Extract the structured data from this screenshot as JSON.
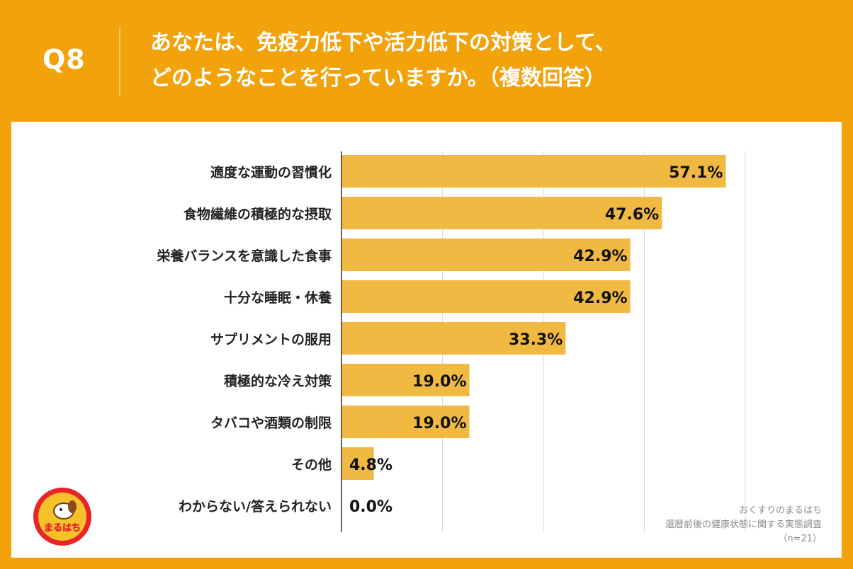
{
  "question": {
    "number": "Q8",
    "title_lines": [
      "あなたは、免疫力低下や活力低下の対策として、",
      "どのようなことを行っていますか。（複数回答）"
    ]
  },
  "chart_data": {
    "type": "bar",
    "orientation": "horizontal",
    "categories": [
      "適度な運動の習慣化",
      "食物繊維の積極的な摂取",
      "栄養バランスを意識した食事",
      "十分な睡眠・休養",
      "サプリメントの服用",
      "積極的な冷え対策",
      "タバコや酒類の制限",
      "その他",
      "わからない/答えられない"
    ],
    "values": [
      57.1,
      47.6,
      42.9,
      42.9,
      33.3,
      19.0,
      19.0,
      4.8,
      0.0
    ],
    "value_labels": [
      "57.1%",
      "47.6%",
      "42.9%",
      "42.9%",
      "33.3%",
      "19.0%",
      "19.0%",
      "4.8%",
      "0.0%"
    ],
    "xlim": [
      0,
      60
    ],
    "grid_step": 15,
    "grid": true,
    "bar_color": "#f0b942",
    "grid_color": "#d9d9d9"
  },
  "logo": {
    "text": "まるはち",
    "name": "おくすりのまるはち"
  },
  "source": {
    "lines": [
      "おくすりのまるはち",
      "還暦前後の健康状態に関する実態調査",
      "（n=21）"
    ]
  },
  "colors": {
    "background": "#f2a20a",
    "panel": "#ffffff",
    "header_text": "#ffffff"
  }
}
